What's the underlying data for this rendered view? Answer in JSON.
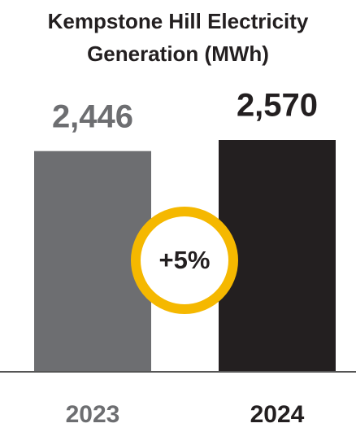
{
  "chart_data": {
    "type": "bar",
    "title": "Kempstone Hill Electricity Generation (MWh)",
    "categories": [
      "2023",
      "2024"
    ],
    "values": [
      2446,
      2570
    ],
    "value_labels": [
      "2,446",
      "2,570"
    ],
    "colors": [
      "#6d6e71",
      "#231f20"
    ],
    "annotation": "+5%",
    "annotation_color": "#f5b800"
  }
}
